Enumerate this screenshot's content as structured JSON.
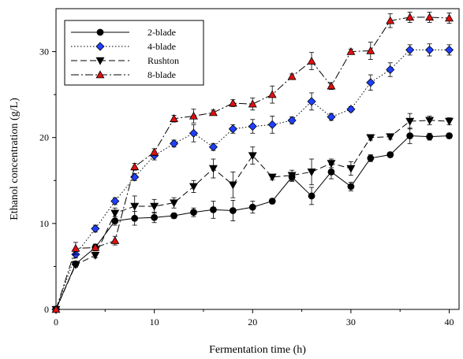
{
  "chart_data": {
    "type": "line",
    "title": "",
    "xlabel": "Fermentation time (h)",
    "ylabel": "Ethanol concentration (g/L)",
    "xlim": [
      0,
      41
    ],
    "ylim": [
      0,
      35
    ],
    "xticks": [
      0,
      10,
      20,
      30,
      40
    ],
    "yticks": [
      0,
      10,
      20,
      30
    ],
    "grid": false,
    "legend_position": "top-left",
    "x": [
      0,
      2,
      4,
      6,
      8,
      10,
      12,
      14,
      16,
      18,
      20,
      22,
      24,
      26,
      28,
      30,
      32,
      34,
      36,
      38,
      40
    ],
    "series": [
      {
        "name": "2-blade",
        "marker": "circle",
        "color": "#000000",
        "line": "solid",
        "values": [
          0,
          5.3,
          7.2,
          10.3,
          10.6,
          10.7,
          10.9,
          11.3,
          11.6,
          11.5,
          11.9,
          12.6,
          15.4,
          13.2,
          16.0,
          14.3,
          17.6,
          18.0,
          20.2,
          20.1,
          20.2
        ],
        "errors": [
          0.1,
          0.3,
          0.3,
          0.5,
          0.8,
          0.6,
          0.3,
          0.5,
          1.0,
          1.2,
          0.7,
          0.3,
          0.5,
          1.0,
          0.8,
          0.5,
          0.4,
          0.3,
          0.9,
          0.4,
          0.3
        ]
      },
      {
        "name": "4-blade",
        "marker": "diamond",
        "color": "#1f3fff",
        "line": "dotted",
        "values": [
          0,
          6.4,
          9.4,
          12.6,
          15.4,
          17.9,
          19.3,
          20.5,
          18.9,
          21.0,
          21.3,
          21.5,
          22.0,
          24.2,
          22.4,
          23.3,
          26.4,
          27.9,
          30.2,
          30.2,
          30.2
        ],
        "errors": [
          0.1,
          0.4,
          0.4,
          0.4,
          0.4,
          0.5,
          0.4,
          1.0,
          0.4,
          0.5,
          0.8,
          1.0,
          0.4,
          1.0,
          0.4,
          0.3,
          0.9,
          0.8,
          0.6,
          0.7,
          0.6
        ]
      },
      {
        "name": "Rushton",
        "marker": "triangle-down",
        "color": "#000000",
        "line": "dashed",
        "values": [
          0,
          5.2,
          6.3,
          11.2,
          12.0,
          12.0,
          12.4,
          14.3,
          16.4,
          14.5,
          17.9,
          15.4,
          15.6,
          16.0,
          17.0,
          16.4,
          20.0,
          20.1,
          21.9,
          22.0,
          21.9
        ],
        "errors": [
          0.1,
          0.3,
          0.3,
          0.6,
          1.2,
          0.8,
          0.6,
          0.7,
          1.1,
          1.5,
          1.0,
          0.3,
          0.6,
          1.5,
          0.5,
          0.8,
          0.3,
          0.3,
          0.9,
          0.5,
          0.4
        ]
      },
      {
        "name": "8-blade",
        "marker": "triangle-up",
        "color": "#e01010",
        "line": "dash-dot",
        "values": [
          0,
          7.1,
          7.2,
          8.0,
          16.6,
          18.3,
          22.2,
          22.5,
          22.9,
          24.0,
          23.9,
          25.0,
          27.1,
          28.9,
          26.0,
          30.0,
          30.1,
          33.6,
          34.0,
          34.0,
          33.9
        ],
        "errors": [
          0.1,
          0.7,
          0.4,
          0.5,
          0.4,
          0.4,
          0.4,
          0.8,
          0.3,
          0.4,
          0.7,
          1.0,
          0.3,
          1.0,
          0.4,
          0.3,
          1.0,
          0.8,
          0.6,
          0.6,
          0.6
        ]
      }
    ]
  }
}
